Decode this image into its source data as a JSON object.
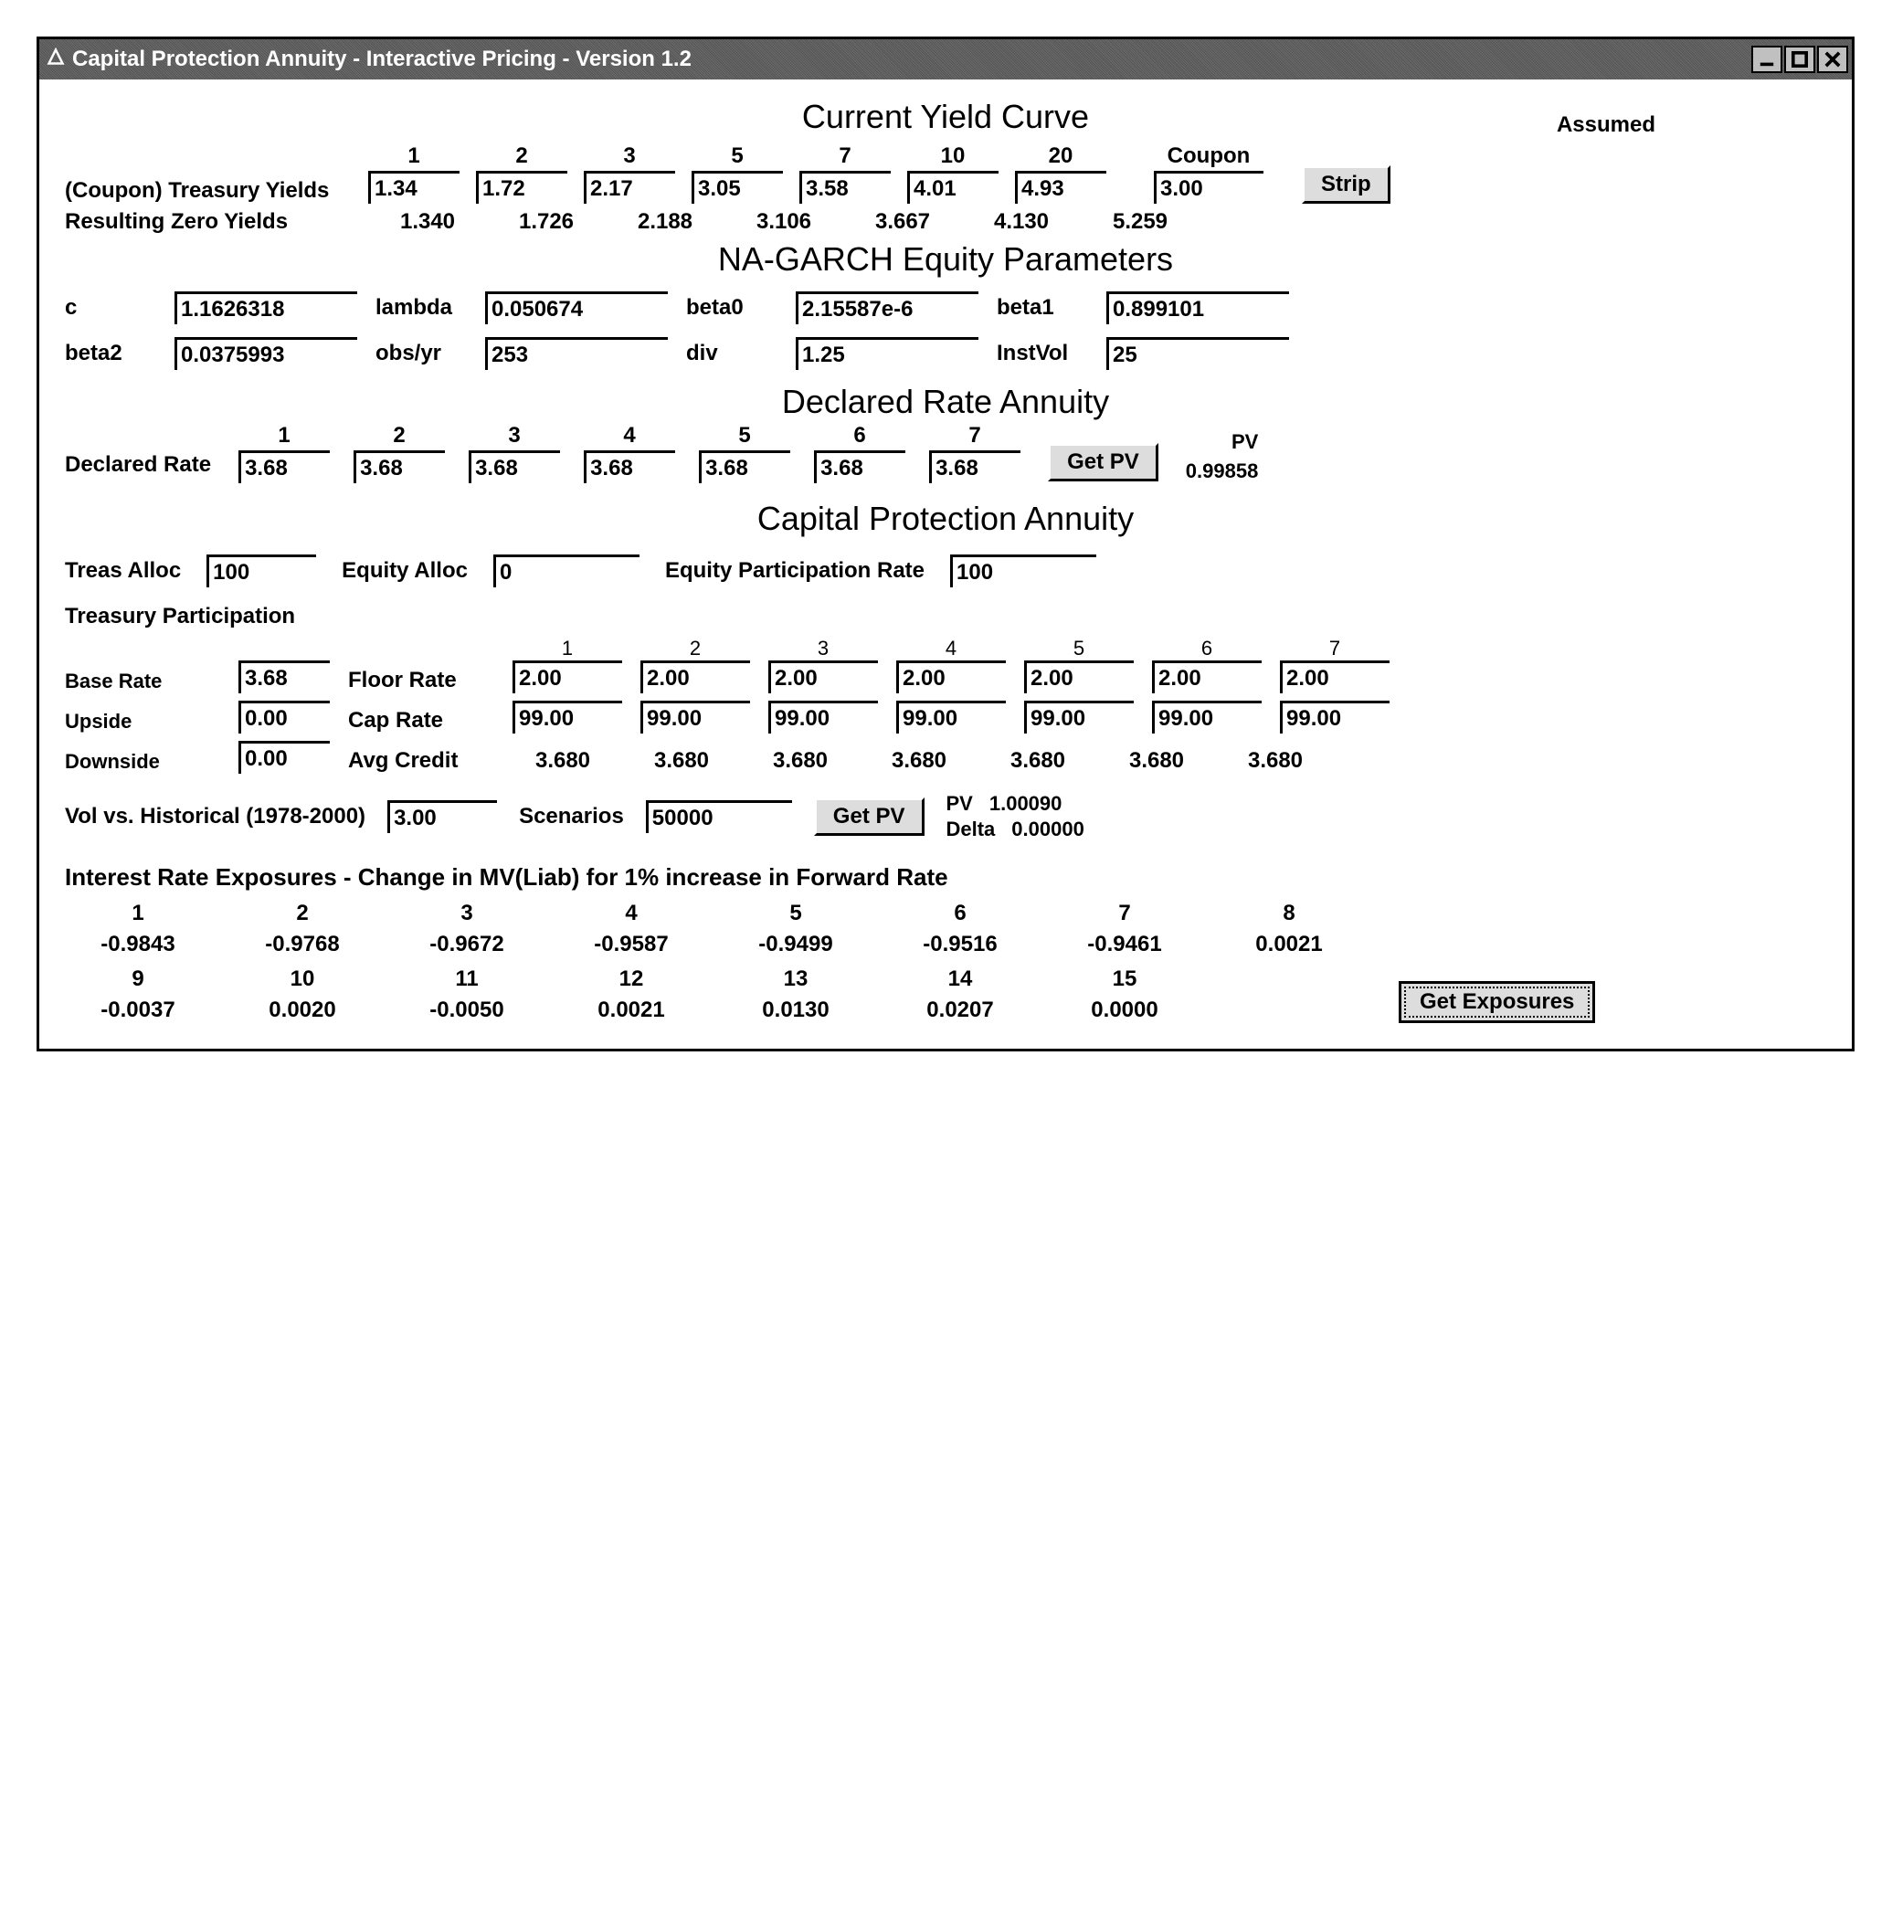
{
  "window": {
    "title": "Capital Protection Annuity - Interactive Pricing - Version 1.2"
  },
  "yieldCurve": {
    "heading": "Current Yield Curve",
    "assumed_label": "Assumed",
    "coupon_label": "Coupon",
    "treasury_label": "(Coupon) Treasury Yields",
    "strip_btn": "Strip",
    "tenors": [
      "1",
      "2",
      "3",
      "5",
      "7",
      "10",
      "20"
    ],
    "yields": [
      "1.34",
      "1.72",
      "2.17",
      "3.05",
      "3.58",
      "4.01",
      "4.93"
    ],
    "assumed_coupon": "3.00",
    "zero_label": "Resulting Zero Yields",
    "zero_yields": [
      "1.340",
      "1.726",
      "2.188",
      "3.106",
      "3.667",
      "4.130",
      "5.259"
    ]
  },
  "garch": {
    "heading": "NA-GARCH Equity Parameters",
    "c_label": "c",
    "c": "1.1626318",
    "lambda_label": "lambda",
    "lambda": "0.050674",
    "beta0_label": "beta0",
    "beta0": "2.15587e-6",
    "beta1_label": "beta1",
    "beta1": "0.899101",
    "beta2_label": "beta2",
    "beta2": "0.0375993",
    "obs_label": "obs/yr",
    "obs": "253",
    "div_label": "div",
    "div": "1.25",
    "instvol_label": "InstVol",
    "instvol": "25"
  },
  "declared": {
    "heading": "Declared Rate Annuity",
    "label": "Declared Rate",
    "years": [
      "1",
      "2",
      "3",
      "4",
      "5",
      "6",
      "7"
    ],
    "rates": [
      "3.68",
      "3.68",
      "3.68",
      "3.68",
      "3.68",
      "3.68",
      "3.68"
    ],
    "getpv_btn": "Get PV",
    "pv_label": "PV",
    "pv_value": "0.99858"
  },
  "cpa": {
    "heading": "Capital Protection Annuity",
    "treas_alloc_label": "Treas Alloc",
    "treas_alloc": "100",
    "equity_alloc_label": "Equity Alloc",
    "equity_alloc": "0",
    "epr_label": "Equity Participation Rate",
    "epr": "100",
    "treas_part_label": "Treasury Participation",
    "base_rate_label": "Base Rate",
    "base_rate": "3.68",
    "upside_label": "Upside",
    "upside": "0.00",
    "downside_label": "Downside",
    "downside": "0.00",
    "floor_label": "Floor Rate",
    "cap_label": "Cap Rate",
    "avg_label": "Avg Credit",
    "years": [
      "1",
      "2",
      "3",
      "4",
      "5",
      "6",
      "7"
    ],
    "floor": [
      "2.00",
      "2.00",
      "2.00",
      "2.00",
      "2.00",
      "2.00",
      "2.00"
    ],
    "cap": [
      "99.00",
      "99.00",
      "99.00",
      "99.00",
      "99.00",
      "99.00",
      "99.00"
    ],
    "avg": [
      "3.680",
      "3.680",
      "3.680",
      "3.680",
      "3.680",
      "3.680",
      "3.680"
    ]
  },
  "sim": {
    "vol_label": "Vol vs. Historical (1978-2000)",
    "vol": "3.00",
    "scen_label": "Scenarios",
    "scen": "50000",
    "getpv_btn": "Get PV",
    "pv_label": "PV",
    "pv_value": "1.00090",
    "delta_label": "Delta",
    "delta_value": "0.00000"
  },
  "exposure": {
    "heading": "Interest Rate Exposures - Change in MV(Liab) for 1% increase in Forward Rate",
    "cols1": [
      "1",
      "2",
      "3",
      "4",
      "5",
      "6",
      "7",
      "8"
    ],
    "vals1": [
      "-0.9843",
      "-0.9768",
      "-0.9672",
      "-0.9587",
      "-0.9499",
      "-0.9516",
      "-0.9461",
      "0.0021"
    ],
    "cols2": [
      "9",
      "10",
      "11",
      "12",
      "13",
      "14",
      "15"
    ],
    "vals2": [
      "-0.0037",
      "0.0020",
      "-0.0050",
      "0.0021",
      "0.0130",
      "0.0207",
      "0.0000"
    ],
    "btn": "Get Exposures"
  }
}
